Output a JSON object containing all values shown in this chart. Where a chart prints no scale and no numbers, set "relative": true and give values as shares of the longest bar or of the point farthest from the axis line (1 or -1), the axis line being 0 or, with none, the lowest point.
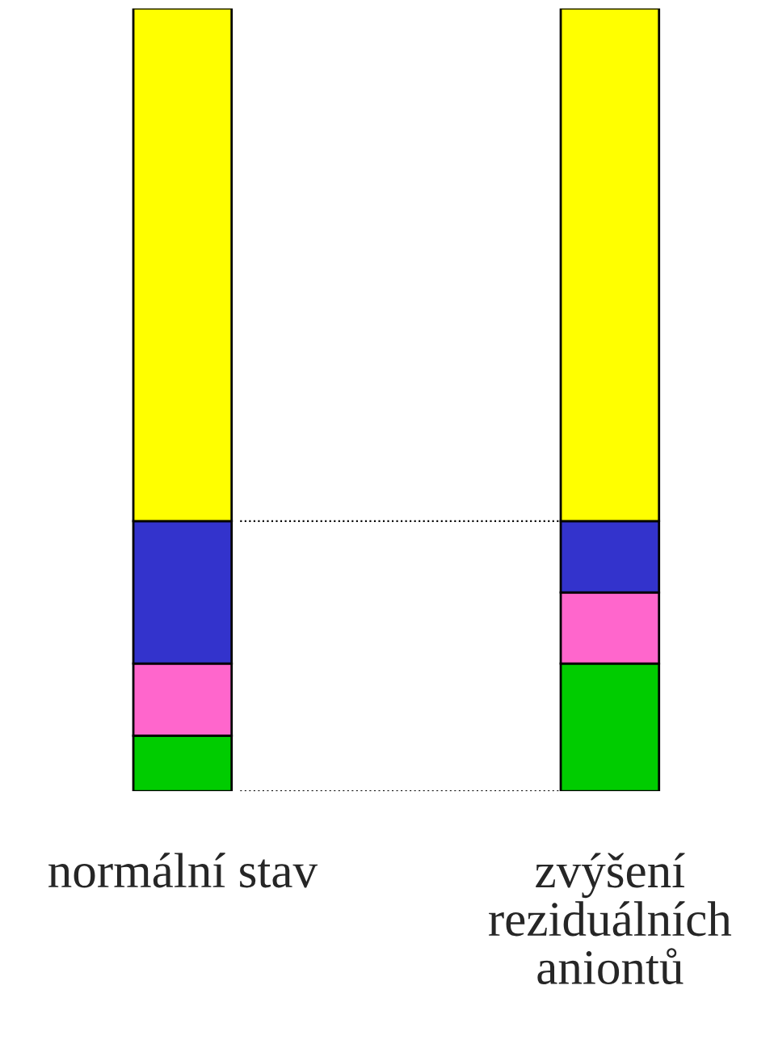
{
  "chart_data": {
    "type": "bar",
    "stacked": true,
    "relative": true,
    "categories": [
      "normální stav",
      "zvýšení reziduálních aniontů"
    ],
    "series": [
      {
        "color": "#00cc00",
        "values": [
          0.071,
          0.163
        ]
      },
      {
        "color": "#ff66cc",
        "values": [
          0.092,
          0.091
        ]
      },
      {
        "color": "#3333cc",
        "values": [
          0.182,
          0.091
        ]
      },
      {
        "color": "#ffff00",
        "values": [
          0.655,
          0.655
        ]
      }
    ],
    "ref_lines": [
      {
        "axis": "y",
        "value": 0.345,
        "line_style": "dotted",
        "color": "#000000"
      },
      {
        "axis": "y",
        "value": 0,
        "line_style": "dotted",
        "color": "#000000"
      }
    ],
    "grid": false,
    "legend": false
  }
}
